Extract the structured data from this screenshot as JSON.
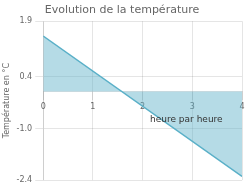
{
  "chart_data": {
    "type": "area",
    "title": "Evolution de la température",
    "xlabel": "heure par heure",
    "ylabel": "Température en °C",
    "x": [
      0,
      4
    ],
    "series": [
      {
        "color": "#5ab0c8",
        "values": [
          1.5,
          -2.3
        ]
      }
    ],
    "xlim": [
      0,
      4
    ],
    "ylim": [
      -2.4,
      1.9
    ],
    "xticks": [
      0,
      1,
      2,
      3,
      4
    ],
    "yticks": [
      -2.4,
      {
        "value": -1.0,
        "label": "-1.0"
      },
      0.4,
      1.9
    ],
    "grid": true
  }
}
